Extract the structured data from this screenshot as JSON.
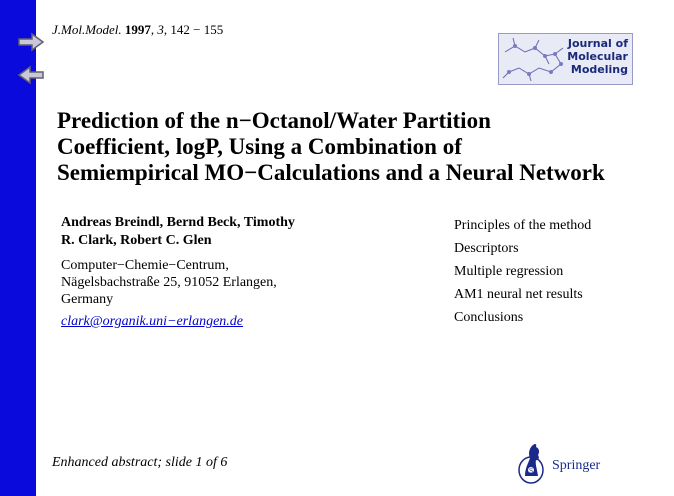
{
  "nav": {
    "next_icon": "right-arrow-icon",
    "prev_icon": "left-arrow-icon"
  },
  "citation": {
    "journal": "J.Mol.Model.",
    "year": "1997",
    "volume": "3",
    "pages": ", 142 − 155"
  },
  "logo": {
    "line1": "Journal of",
    "line2": "Molecular",
    "line3": "Modeling"
  },
  "title": {
    "line1": "Prediction of the n−Octanol/Water Partition",
    "line2": "Coefficient, logP, Using a Combination of",
    "line3": "Semiempirical MO−Calculations and a Neural Network"
  },
  "authors": {
    "line1": "Andreas Breindl, Bernd Beck, Timothy",
    "line2": "R. Clark, Robert C. Glen"
  },
  "affiliation": {
    "line1": "Computer−Chemie−Centrum,",
    "line2": "Nägelsbachstraße 25, 91052 Erlangen,",
    "line3": "Germany"
  },
  "email": "clark@organik.uni−erlangen.de",
  "outline": [
    "Principles of the method",
    "Descriptors",
    "Multiple regression",
    "AM1 neural net results",
    "Conclusions"
  ],
  "footer": "Enhanced abstract; slide 1 of 6",
  "publisher": "Springer",
  "colors": {
    "sidebar": "#0a0adc",
    "link": "#0000cc"
  }
}
